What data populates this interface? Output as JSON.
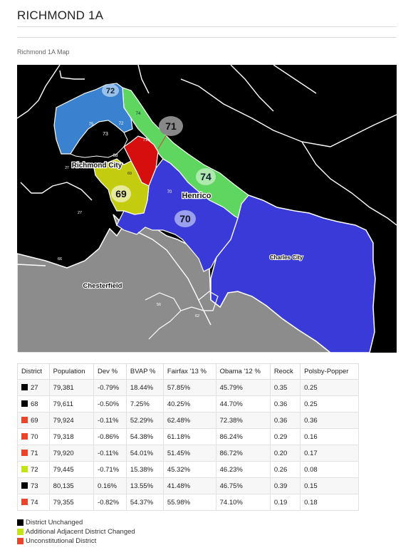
{
  "page": {
    "title": "RICHMOND 1A",
    "map_caption": "Richmond 1A Map"
  },
  "colors": {
    "unchanged": "#000000",
    "adjacent_changed": "#c4e312",
    "unconstitutional": "#e8452a"
  },
  "map": {
    "place_labels": {
      "richmond_city": "Richmond City",
      "henrico": "Henrico",
      "chesterfield": "Chesterfield",
      "charles_city": "Charles City"
    },
    "district_badges": {
      "d72": "72",
      "d71": "71",
      "d74": "74",
      "d69": "69",
      "d70": "70"
    },
    "small_labels": {
      "s75": "75",
      "s73": "73",
      "s72": "72",
      "s74": "74",
      "s71": "71",
      "s68": "68",
      "s69": "69",
      "s70": "70",
      "s27": "27",
      "s27b": "27",
      "s66": "66",
      "s62": "62",
      "s56": "56"
    }
  },
  "table": {
    "headers": [
      "District",
      "Population",
      "Dev %",
      "BVAP %",
      "Fairfax '13 %",
      "Obama '12 %",
      "Reock",
      "Polsby-Popper"
    ],
    "rows": [
      {
        "district": "27",
        "status": "unchanged",
        "population": "79,381",
        "dev": "-0.79%",
        "bvap": "18.44%",
        "fairfax": "57.85%",
        "obama": "45.79%",
        "reock": "0.35",
        "polsby": "0.25"
      },
      {
        "district": "68",
        "status": "unchanged",
        "population": "79,611",
        "dev": "-0.50%",
        "bvap": "7.25%",
        "fairfax": "40.25%",
        "obama": "44.70%",
        "reock": "0.36",
        "polsby": "0.25"
      },
      {
        "district": "69",
        "status": "unconstitutional",
        "population": "79,924",
        "dev": "-0.11%",
        "bvap": "52.29%",
        "fairfax": "62.48%",
        "obama": "72.38%",
        "reock": "0.36",
        "polsby": "0.36"
      },
      {
        "district": "70",
        "status": "unconstitutional",
        "population": "79,318",
        "dev": "-0.86%",
        "bvap": "54.38%",
        "fairfax": "61.18%",
        "obama": "86.24%",
        "reock": "0.29",
        "polsby": "0.16"
      },
      {
        "district": "71",
        "status": "unconstitutional",
        "population": "79,920",
        "dev": "-0.11%",
        "bvap": "54.01%",
        "fairfax": "51.45%",
        "obama": "86.72%",
        "reock": "0.20",
        "polsby": "0.17"
      },
      {
        "district": "72",
        "status": "adjacent_changed",
        "population": "79,445",
        "dev": "-0.71%",
        "bvap": "15.38%",
        "fairfax": "45.32%",
        "obama": "46.23%",
        "reock": "0.26",
        "polsby": "0.08"
      },
      {
        "district": "73",
        "status": "unchanged",
        "population": "80,135",
        "dev": "0.16%",
        "bvap": "13.55%",
        "fairfax": "41.48%",
        "obama": "46.75%",
        "reock": "0.39",
        "polsby": "0.15"
      },
      {
        "district": "74",
        "status": "unconstitutional",
        "population": "79,355",
        "dev": "-0.82%",
        "bvap": "54.37%",
        "fairfax": "55.98%",
        "obama": "74.10%",
        "reock": "0.19",
        "polsby": "0.18"
      }
    ]
  },
  "legend": [
    {
      "label": "District Unchanged",
      "status": "unchanged"
    },
    {
      "label": "Additional Adjacent District Changed",
      "status": "adjacent_changed"
    },
    {
      "label": "Unconstitutional District",
      "status": "unconstitutional"
    }
  ]
}
